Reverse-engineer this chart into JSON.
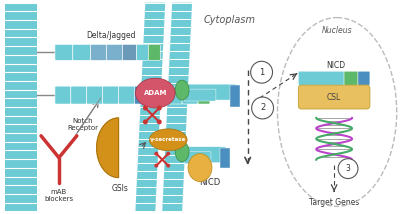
{
  "bg_color": "#ffffff",
  "fig_w": 4.0,
  "fig_h": 2.14,
  "dpi": 100,
  "membrane_color": "#6dcbd6",
  "membrane_line_color": "#ffffff",
  "dark_teal": "#3aacb8",
  "blue_seg": "#4a8fc0",
  "green_seg": "#5db86a",
  "adam_color": "#d4556a",
  "gsi_color": "#d4911a",
  "mab_color": "#cc3333",
  "dna_purple": "#bb44cc",
  "dna_green": "#44aa66",
  "csl_color": "#e8c060",
  "arrow_color": "#444444",
  "text_color": "#333333",
  "nucleus_edge": "#bbbbbb",
  "label_cytoplasm": "Cytoplasm",
  "label_nucleus": "Nucleus",
  "label_delta": "Delta/Jagged",
  "label_notch": "Notch\nReceptor",
  "label_adam": "ADAM",
  "label_gsec": "γ-secretase",
  "label_mab": "mAB\nblockers",
  "label_gsi": "GSIs",
  "label_nicd": "NICD",
  "label_nicd2": "NICD",
  "label_csl": "CSL",
  "label_targets": "Target Genes"
}
